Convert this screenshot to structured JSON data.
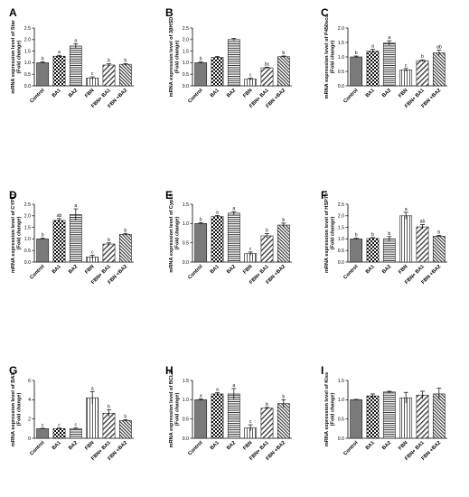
{
  "chart_data": [
    {
      "type": "bar",
      "panel": "A",
      "ylabel": [
        "mRNA expression level of  Star",
        "(Fold change)"
      ],
      "categories": [
        "Control",
        "BA1",
        "BA2",
        "FBN",
        "FBN+ BA1",
        "FBN +BA2"
      ],
      "values": [
        1.0,
        1.28,
        1.72,
        0.34,
        0.9,
        0.93
      ],
      "errors": [
        0.04,
        0.04,
        0.1,
        0.05,
        0.05,
        0.03
      ],
      "letters": [
        "b",
        "a",
        "a",
        "c",
        "b",
        "b"
      ],
      "ylim": [
        0,
        2.5
      ],
      "yticks": [
        0.0,
        0.5,
        1.0,
        1.5,
        2.0,
        2.5
      ],
      "patterns": [
        "solid",
        "checker",
        "hstripe",
        "vstripe",
        "diag",
        "diagdense"
      ]
    },
    {
      "type": "bar",
      "panel": "B",
      "ylabel": [
        "mRNA expression level of  3βHSD",
        "(Fold change)"
      ],
      "categories": [
        "Control",
        "BA1",
        "BA2",
        "FBN",
        "FBN+ BA1",
        "FBN +BA2"
      ],
      "values": [
        1.0,
        1.23,
        2.0,
        0.29,
        0.78,
        1.26
      ],
      "errors": [
        0.03,
        0.04,
        0.05,
        0.04,
        0.03,
        0.03
      ],
      "letters": [
        "b",
        "",
        "",
        "c",
        "bc",
        "b"
      ],
      "ylim": [
        0,
        2.5
      ],
      "yticks": [
        0.0,
        0.5,
        1.0,
        1.5,
        2.0,
        2.5
      ],
      "patterns": [
        "solid",
        "checker",
        "hstripe",
        "vstripe",
        "diag",
        "diagdense"
      ]
    },
    {
      "type": "bar",
      "panel": "C",
      "ylabel": [
        "mRNA expression level of  P450scc",
        "(Fold change)"
      ],
      "categories": [
        "Control",
        "BA1",
        "BA2",
        "FBN",
        "FBN+ BA1",
        "FBN +BA2"
      ],
      "values": [
        1.0,
        1.2,
        1.48,
        0.55,
        0.87,
        1.14
      ],
      "errors": [
        0.03,
        0.06,
        0.08,
        0.05,
        0.03,
        0.09
      ],
      "letters": [
        "b",
        "a",
        "a",
        "c",
        "b",
        "ab"
      ],
      "ylim": [
        0,
        2.0
      ],
      "yticks": [
        0.0,
        0.5,
        1.0,
        1.5,
        2.0
      ],
      "patterns": [
        "solid",
        "checker",
        "hstripe",
        "vstripe",
        "diag",
        "diagdense"
      ]
    },
    {
      "type": "bar",
      "panel": "D",
      "ylabel": [
        "mRNA expression level of  CYP17",
        "(Fold change)"
      ],
      "categories": [
        "Control",
        "BA1",
        "BA2",
        "FBN",
        "FBN+ BA1",
        "FBN +BA2"
      ],
      "values": [
        1.0,
        1.8,
        2.05,
        0.22,
        0.78,
        1.2
      ],
      "errors": [
        0.03,
        0.08,
        0.25,
        0.08,
        0.05,
        0.04
      ],
      "letters": [
        "b",
        "ab",
        "a",
        "c",
        "b",
        "b"
      ],
      "ylim": [
        0,
        2.5
      ],
      "yticks": [
        0.0,
        0.5,
        1.0,
        1.5,
        2.0,
        2.5
      ],
      "patterns": [
        "solid",
        "checker",
        "hstripe",
        "vstripe",
        "diag",
        "diagdense"
      ]
    },
    {
      "type": "bar",
      "panel": "E",
      "ylabel": [
        "mRNA expression level of  Cyp19",
        "(Fold change)"
      ],
      "categories": [
        "Control",
        "BA1",
        "BA2",
        "FBN",
        "FBN+ BA1",
        "FBN +BA2"
      ],
      "values": [
        1.0,
        1.18,
        1.27,
        0.22,
        0.68,
        0.96
      ],
      "errors": [
        0.02,
        0.03,
        0.04,
        0.04,
        0.06,
        0.05
      ],
      "letters": [
        "b",
        "a",
        "a",
        "c",
        "b",
        "b"
      ],
      "ylim": [
        0,
        1.5
      ],
      "yticks": [
        0.0,
        0.5,
        1.0,
        1.5
      ],
      "patterns": [
        "solid",
        "checker",
        "hstripe",
        "vstripe",
        "diag",
        "diagdense"
      ]
    },
    {
      "type": "bar",
      "panel": "F",
      "ylabel": [
        "mRNA expression level of  HSP70",
        "(Fold change)"
      ],
      "categories": [
        "Control",
        "BA1",
        "BA2",
        "FBN",
        "FBN+ BA1",
        "FBN +BA2"
      ],
      "values": [
        1.0,
        1.02,
        1.0,
        2.0,
        1.52,
        1.12
      ],
      "errors": [
        0.03,
        0.04,
        0.1,
        0.15,
        0.1,
        0.04
      ],
      "letters": [
        "b",
        "b",
        "b",
        "a",
        "ab",
        "b"
      ],
      "ylim": [
        0,
        2.5
      ],
      "yticks": [
        0.0,
        0.5,
        1.0,
        1.5,
        2.0,
        2.5
      ],
      "patterns": [
        "solid",
        "checker",
        "hstripe",
        "vstripe",
        "diag",
        "diagdense"
      ]
    },
    {
      "type": "bar",
      "panel": "G",
      "ylabel": [
        "mRNA expression level of  BAX",
        "(Fold change)"
      ],
      "categories": [
        "Control",
        "BA1",
        "BA2",
        "FBN",
        "FBN+ BA1",
        "FBN +BA2"
      ],
      "values": [
        1.0,
        1.0,
        1.0,
        4.2,
        2.6,
        1.85
      ],
      "errors": [
        0.04,
        0.05,
        0.06,
        0.65,
        0.35,
        0.08
      ],
      "letters": [
        "c",
        "c",
        "c",
        "a",
        "b",
        "b"
      ],
      "ylim": [
        0,
        6
      ],
      "yticks": [
        0,
        2,
        4,
        6
      ],
      "patterns": [
        "solid",
        "checker",
        "hstripe",
        "vstripe",
        "diag",
        "diagdense"
      ]
    },
    {
      "type": "bar",
      "panel": "H",
      "ylabel": [
        "mRNA expression level of  BCL2",
        "(Fold change)"
      ],
      "categories": [
        "Control",
        "BA1",
        "BA2",
        "FBN",
        "FBN+ BA1",
        "FBN +BA2"
      ],
      "values": [
        1.0,
        1.15,
        1.15,
        0.27,
        0.78,
        0.9
      ],
      "errors": [
        0.02,
        0.03,
        0.14,
        0.08,
        0.02,
        0.1
      ],
      "letters": [
        "a",
        "a",
        "a",
        "c",
        "b",
        "b"
      ],
      "ylim": [
        0,
        1.5
      ],
      "yticks": [
        0.0,
        0.5,
        1.0,
        1.5
      ],
      "patterns": [
        "solid",
        "checker",
        "hstripe",
        "vstripe",
        "diag",
        "diagdense"
      ]
    },
    {
      "type": "bar",
      "panel": "I",
      "ylabel": [
        "mRNA expression level of  Kiss",
        "(Fold change)"
      ],
      "categories": [
        "Control",
        "BA1",
        "BA2",
        "FBN",
        "FBN+ BA1",
        "FBN +BA2"
      ],
      "values": [
        1.0,
        1.1,
        1.2,
        1.05,
        1.12,
        1.15
      ],
      "errors": [
        0.01,
        0.05,
        0.02,
        0.14,
        0.1,
        0.15
      ],
      "letters": [
        "",
        "",
        "",
        "",
        "",
        ""
      ],
      "ylim": [
        0,
        1.5
      ],
      "yticks": [
        0.0,
        0.5,
        1.0,
        1.5
      ],
      "patterns": [
        "solid",
        "checker",
        "hstripe",
        "vstripe",
        "diag",
        "diagdense"
      ]
    }
  ]
}
